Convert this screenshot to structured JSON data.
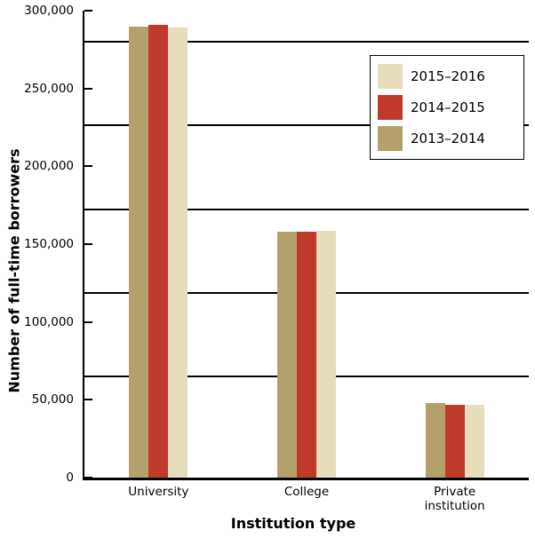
{
  "chart_data": {
    "type": "bar",
    "title": "",
    "xlabel": "Institution type",
    "ylabel": "Number of full-time borrowers",
    "categories": [
      "University",
      "College",
      "Private institution"
    ],
    "series": [
      {
        "name": "2013–2014",
        "color": "#b3a06a",
        "values": [
          290000,
          158000,
          48000
        ]
      },
      {
        "name": "2014–2015",
        "color": "#c03a2b",
        "values": [
          291000,
          158000,
          46500
        ]
      },
      {
        "name": "2015–2016",
        "color": "#e6ddbb",
        "values": [
          289000,
          158500,
          47000
        ]
      }
    ],
    "legend": {
      "position": "top-right",
      "order": [
        "2015–2016",
        "2014–2015",
        "2013–2014"
      ]
    },
    "ylim": [
      0,
      300000
    ],
    "yticks": [
      0,
      50000,
      100000,
      150000,
      200000,
      250000,
      300000
    ],
    "ytick_labels": [
      "0",
      "50,000",
      "100,000",
      "150,000",
      "200,000",
      "250,000",
      "300,000"
    ],
    "gridlines": [
      280000,
      226250,
      172500,
      118750,
      65000
    ],
    "axis_color": "#000000",
    "grid_color": "#000000",
    "background_color": "#ffffff"
  }
}
